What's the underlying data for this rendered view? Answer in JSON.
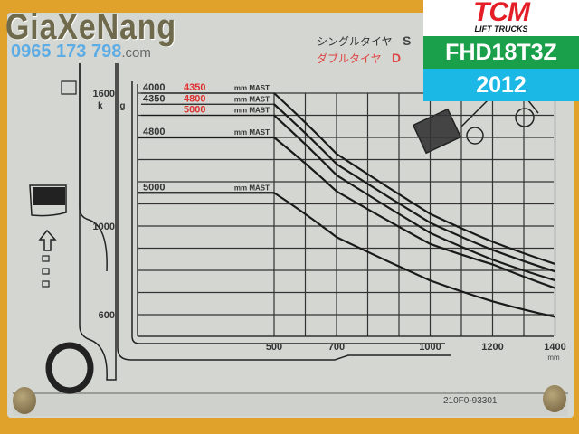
{
  "watermark": {
    "brand": "GiaXeNang",
    "phone": "0965 173 798",
    "domain": ".com"
  },
  "plate": {
    "single_tire": "シングルタイヤ",
    "single_code": "S",
    "double_tire": "ダブルタイヤ",
    "double_code": "D",
    "part_number": "210F0-93301"
  },
  "overlay": {
    "brand": "TCM",
    "brand_sub": "LIFT TRUCKS",
    "model": "FHD18T3Z",
    "year": "2012",
    "colors": {
      "brand": "#e41e26",
      "model_bg": "#1aa04a",
      "year_bg": "#1bb8e6"
    }
  },
  "chart_data": {
    "type": "line",
    "title": "",
    "xlabel": "mm",
    "ylabel": "k g",
    "xlim": [
      62,
      1400
    ],
    "ylim": [
      500,
      1600
    ],
    "x_ticks": [
      500,
      700,
      1000,
      1200,
      1400
    ],
    "y_ticks": [
      1600,
      1000,
      600
    ],
    "grid": true,
    "series": [
      {
        "name": "4000 4350 mm MAST",
        "label_black": "4000",
        "label_red": "4350",
        "suffix": "mm MAST",
        "x": [
          500,
          700,
          1000,
          1200,
          1400
        ],
        "y": [
          1600,
          1326,
          1055,
          929,
          829
        ]
      },
      {
        "name": "4350 4800 mm MAST",
        "label_black": "4350",
        "label_red": "4800",
        "suffix": "mm MAST",
        "x": [
          500,
          700,
          1000,
          1200,
          1400
        ],
        "y": [
          1550,
          1280,
          1015,
          892,
          795
        ]
      },
      {
        "name": "5000 mm MAST",
        "label_black": "",
        "label_red": "5000",
        "suffix": "mm MAST",
        "x": [
          500,
          700,
          1000,
          1200,
          1400
        ],
        "y": [
          1500,
          1230,
          969,
          848,
          755
        ]
      },
      {
        "name": "4800 mm MAST",
        "label_black": "4800",
        "label_red": "",
        "suffix": "mm MAST",
        "x": [
          500,
          700,
          1000,
          1200,
          1400
        ],
        "y": [
          1400,
          1157,
          919,
          827,
          720
        ]
      },
      {
        "name": "5000 mm MAST",
        "label_black": "5000",
        "label_red": "",
        "suffix": "mm MAST",
        "x": [
          500,
          700,
          1000,
          1200,
          1400
        ],
        "y": [
          1150,
          950,
          754,
          660,
          590
        ]
      }
    ]
  }
}
